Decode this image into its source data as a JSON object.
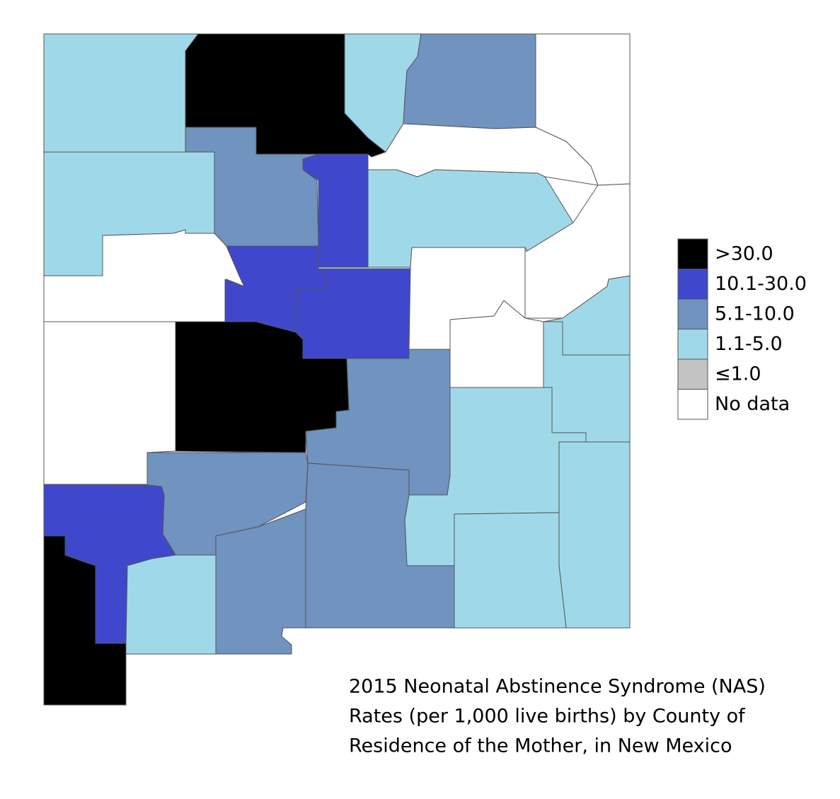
{
  "title": [
    "2015 Neonatal Abstinence Syndrome (NAS)",
    "Rates (per 1,000 live births) by County of",
    "Residence of the Mother, in New Mexico"
  ],
  "legend": [
    {
      "label": ">30.0",
      "color": "#000000"
    },
    {
      "label": "10.1-30.0",
      "color": "#3f48cc"
    },
    {
      "label": "5.1-10.0",
      "color": "#7093bf"
    },
    {
      "label": "1.1-5.0",
      "color": "#9fd9e9"
    },
    {
      "label": "≤1.0",
      "color": "#c3c3c3"
    },
    {
      "label": "No data",
      "color": "#ffffff"
    }
  ]
}
